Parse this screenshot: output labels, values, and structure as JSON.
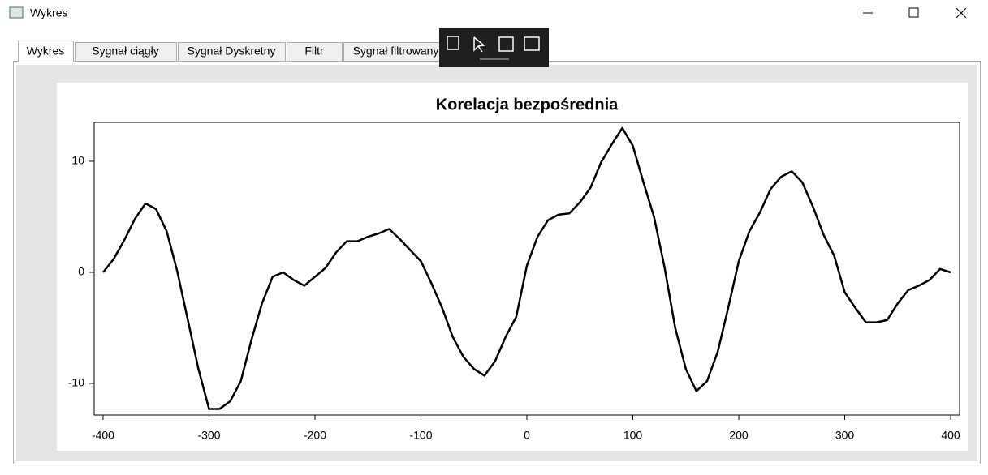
{
  "window": {
    "title": "Wykres",
    "tabs": [
      "Wykres",
      "Sygnał ciągły",
      "Sygnał Dyskretny",
      "Filtr",
      "Sygnał filtrowany"
    ]
  },
  "chart_data": {
    "type": "line",
    "title": "Korelacja bezpośrednia",
    "x": [
      -400,
      -390,
      -380,
      -370,
      -360,
      -350,
      -340,
      -330,
      -320,
      -310,
      -300,
      -290,
      -280,
      -270,
      -260,
      -250,
      -240,
      -230,
      -220,
      -210,
      -200,
      -190,
      -180,
      -170,
      -160,
      -150,
      -140,
      -130,
      -120,
      -110,
      -100,
      -90,
      -80,
      -70,
      -60,
      -50,
      -40,
      -30,
      -20,
      -10,
      0,
      10,
      20,
      30,
      40,
      50,
      60,
      70,
      80,
      90,
      100,
      110,
      120,
      130,
      140,
      150,
      160,
      170,
      180,
      190,
      200,
      210,
      220,
      230,
      240,
      250,
      260,
      270,
      280,
      290,
      300,
      310,
      320,
      330,
      340,
      350,
      360,
      370,
      380,
      390,
      400
    ],
    "values": [
      0,
      1.2,
      2.9,
      4.8,
      6.2,
      5.7,
      3.7,
      0.1,
      -4.3,
      -8.7,
      -12.3,
      -12.3,
      -11.6,
      -9.8,
      -6.1,
      -2.8,
      -0.4,
      0,
      -0.7,
      -1.2,
      -0.4,
      0.4,
      1.8,
      2.8,
      2.8,
      3.2,
      3.5,
      3.9,
      3.0,
      2.0,
      1.0,
      -1.0,
      -3.2,
      -5.8,
      -7.6,
      -8.7,
      -9.3,
      -8.0,
      -5.8,
      -4.0,
      0.6,
      3.2,
      4.7,
      5.2,
      5.3,
      6.3,
      7.6,
      9.9,
      11.5,
      13.0,
      11.4,
      8.1,
      5.0,
      0.4,
      -5.0,
      -8.7,
      -10.7,
      -9.8,
      -7.2,
      -3.2,
      1.0,
      3.7,
      5.4,
      7.5,
      8.6,
      9.1,
      8.1,
      5.9,
      3.4,
      1.5,
      -1.8,
      -3.2,
      -4.5,
      -4.5,
      -4.3,
      -2.8,
      -1.6,
      -1.2,
      -0.7,
      0.3,
      0
    ],
    "color": "#000000",
    "xlim": [
      -408.4,
      408.4
    ],
    "xticks": [
      -400,
      -300,
      -200,
      -100,
      0,
      100,
      200,
      300,
      400
    ],
    "ylim": [
      -12.85,
      13.5
    ],
    "yticks": [
      -10,
      0,
      10
    ]
  }
}
